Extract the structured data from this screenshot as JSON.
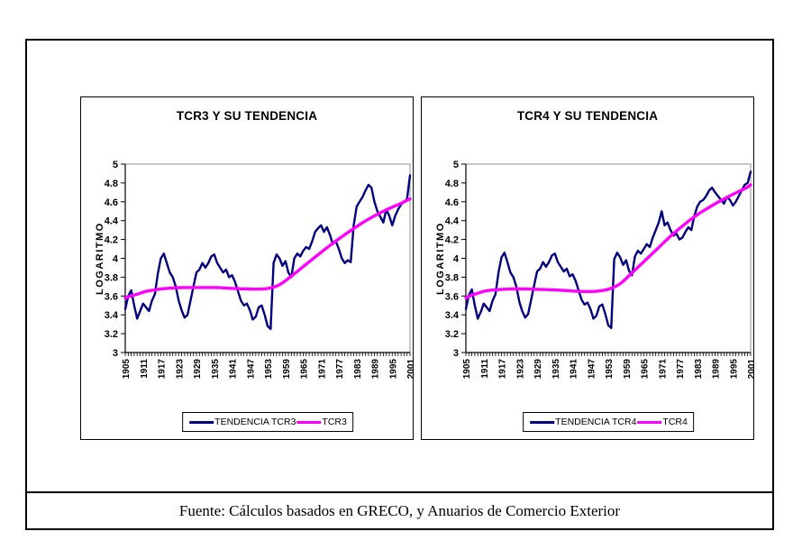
{
  "caption": {
    "text": "Fuente: Cálculos basados en GRECO, y Anuarios de Comercio Exterior"
  },
  "colors": {
    "navy": "#000080",
    "magenta": "#FF00FF",
    "axis": "#000000",
    "plot_border": "#909090",
    "frame": "#000000"
  },
  "chart_data": [
    {
      "type": "line",
      "title": "TCR3 Y SU TENDENCIA",
      "xlabel": "",
      "ylabel": "LOGARITMO",
      "ylim": [
        3,
        5
      ],
      "y_tick_step": 0.2,
      "y_tick_labels": [
        "3",
        "3.2",
        "3.4",
        "3.6",
        "3.8",
        "4",
        "4.2",
        "4.4",
        "4.6",
        "4.8",
        "5"
      ],
      "x_start": 1905,
      "x_end": 2001,
      "x_tick_labels": [
        "1905",
        "1911",
        "1917",
        "1923",
        "1929",
        "1935",
        "1941",
        "1947",
        "1953",
        "1959",
        "1965",
        "1971",
        "1977",
        "1983",
        "1989",
        "1995",
        "2001"
      ],
      "grid": false,
      "legend_position": "bottom",
      "series": [
        {
          "name": "TENDENCIA TCR3",
          "color": "#000080",
          "width": 2.4,
          "values": [
            3.46,
            3.6,
            3.66,
            3.5,
            3.36,
            3.44,
            3.52,
            3.48,
            3.44,
            3.55,
            3.62,
            3.84,
            4.0,
            4.05,
            3.95,
            3.85,
            3.8,
            3.7,
            3.55,
            3.45,
            3.37,
            3.4,
            3.55,
            3.7,
            3.85,
            3.88,
            3.95,
            3.9,
            3.95,
            4.02,
            4.04,
            3.95,
            3.9,
            3.85,
            3.88,
            3.8,
            3.82,
            3.75,
            3.65,
            3.55,
            3.5,
            3.52,
            3.45,
            3.35,
            3.38,
            3.48,
            3.5,
            3.4,
            3.28,
            3.25,
            3.95,
            4.04,
            4.0,
            3.92,
            3.97,
            3.85,
            3.8,
            4.0,
            4.05,
            4.02,
            4.08,
            4.12,
            4.1,
            4.18,
            4.28,
            4.32,
            4.35,
            4.28,
            4.33,
            4.25,
            4.15,
            4.18,
            4.1,
            4.0,
            3.95,
            3.98,
            3.96,
            4.35,
            4.55,
            4.6,
            4.65,
            4.72,
            4.78,
            4.75,
            4.6,
            4.5,
            4.44,
            4.38,
            4.52,
            4.45,
            4.35,
            4.45,
            4.52,
            4.57,
            4.6,
            4.63,
            4.88
          ]
        },
        {
          "name": "TCR3",
          "color": "#FF00FF",
          "width": 3.4,
          "values": [
            3.58,
            3.59,
            3.6,
            3.61,
            3.62,
            3.63,
            3.64,
            3.65,
            3.655,
            3.66,
            3.665,
            3.67,
            3.674,
            3.678,
            3.68,
            3.683,
            3.685,
            3.687,
            3.688,
            3.689,
            3.69,
            3.69,
            3.69,
            3.69,
            3.69,
            3.69,
            3.69,
            3.69,
            3.69,
            3.69,
            3.69,
            3.689,
            3.688,
            3.686,
            3.684,
            3.682,
            3.68,
            3.679,
            3.678,
            3.677,
            3.676,
            3.675,
            3.674,
            3.673,
            3.673,
            3.673,
            3.674,
            3.676,
            3.68,
            3.686,
            3.694,
            3.705,
            3.72,
            3.74,
            3.762,
            3.786,
            3.81,
            3.835,
            3.86,
            3.886,
            3.912,
            3.938,
            3.963,
            3.988,
            4.013,
            4.038,
            4.063,
            4.088,
            4.112,
            4.136,
            4.16,
            4.183,
            4.206,
            4.229,
            4.251,
            4.273,
            4.295,
            4.316,
            4.337,
            4.357,
            4.377,
            4.396,
            4.415,
            4.433,
            4.45,
            4.467,
            4.483,
            4.499,
            4.514,
            4.529,
            4.543,
            4.557,
            4.57,
            4.583,
            4.6,
            4.615,
            4.63
          ]
        }
      ]
    },
    {
      "type": "line",
      "title": "TCR4 Y SU TENDENCIA",
      "xlabel": "",
      "ylabel": "LOGARITMO",
      "ylim": [
        3,
        5
      ],
      "y_tick_step": 0.2,
      "y_tick_labels": [
        "3",
        "3.2",
        "3.4",
        "3.6",
        "3.8",
        "4",
        "4.2",
        "4.4",
        "4.6",
        "4.8",
        "5"
      ],
      "x_start": 1905,
      "x_end": 2001,
      "x_tick_labels": [
        "1905",
        "1911",
        "1917",
        "1923",
        "1929",
        "1935",
        "1941",
        "1947",
        "1953",
        "1959",
        "1965",
        "1971",
        "1977",
        "1983",
        "1989",
        "1995",
        "2001"
      ],
      "grid": false,
      "legend_position": "bottom",
      "series": [
        {
          "name": "TENDENCIA TCR4",
          "color": "#000080",
          "width": 2.4,
          "values": [
            3.46,
            3.61,
            3.67,
            3.5,
            3.36,
            3.43,
            3.52,
            3.48,
            3.44,
            3.55,
            3.62,
            3.85,
            4.01,
            4.06,
            3.96,
            3.85,
            3.8,
            3.7,
            3.54,
            3.44,
            3.37,
            3.41,
            3.56,
            3.71,
            3.86,
            3.89,
            3.96,
            3.91,
            3.96,
            4.03,
            4.05,
            3.96,
            3.91,
            3.86,
            3.89,
            3.81,
            3.83,
            3.76,
            3.66,
            3.56,
            3.51,
            3.53,
            3.46,
            3.36,
            3.39,
            3.49,
            3.51,
            3.41,
            3.29,
            3.26,
            3.99,
            4.06,
            4.01,
            3.93,
            3.98,
            3.87,
            3.82,
            4.02,
            4.08,
            4.05,
            4.1,
            4.15,
            4.12,
            4.22,
            4.3,
            4.38,
            4.5,
            4.35,
            4.38,
            4.3,
            4.24,
            4.26,
            4.2,
            4.22,
            4.28,
            4.33,
            4.3,
            4.45,
            4.55,
            4.6,
            4.62,
            4.66,
            4.72,
            4.75,
            4.7,
            4.66,
            4.62,
            4.58,
            4.65,
            4.62,
            4.56,
            4.6,
            4.66,
            4.72,
            4.78,
            4.8,
            4.92
          ]
        },
        {
          "name": "TCR4",
          "color": "#FF00FF",
          "width": 3.4,
          "values": [
            3.58,
            3.595,
            3.61,
            3.62,
            3.63,
            3.64,
            3.65,
            3.655,
            3.66,
            3.663,
            3.666,
            3.668,
            3.67,
            3.672,
            3.673,
            3.674,
            3.675,
            3.675,
            3.675,
            3.675,
            3.675,
            3.674,
            3.673,
            3.672,
            3.671,
            3.67,
            3.669,
            3.668,
            3.667,
            3.666,
            3.665,
            3.663,
            3.661,
            3.659,
            3.657,
            3.655,
            3.653,
            3.651,
            3.65,
            3.649,
            3.648,
            3.648,
            3.648,
            3.649,
            3.651,
            3.654,
            3.658,
            3.664,
            3.672,
            3.682,
            3.695,
            3.71,
            3.73,
            3.755,
            3.785,
            3.815,
            3.845,
            3.875,
            3.905,
            3.935,
            3.965,
            3.995,
            4.025,
            4.055,
            4.085,
            4.115,
            4.145,
            4.175,
            4.205,
            4.235,
            4.262,
            4.289,
            4.316,
            4.342,
            4.368,
            4.393,
            4.417,
            4.44,
            4.462,
            4.483,
            4.503,
            4.522,
            4.541,
            4.56,
            4.578,
            4.596,
            4.613,
            4.63,
            4.647,
            4.663,
            4.679,
            4.694,
            4.709,
            4.724,
            4.739,
            4.755,
            4.78
          ]
        }
      ]
    }
  ]
}
